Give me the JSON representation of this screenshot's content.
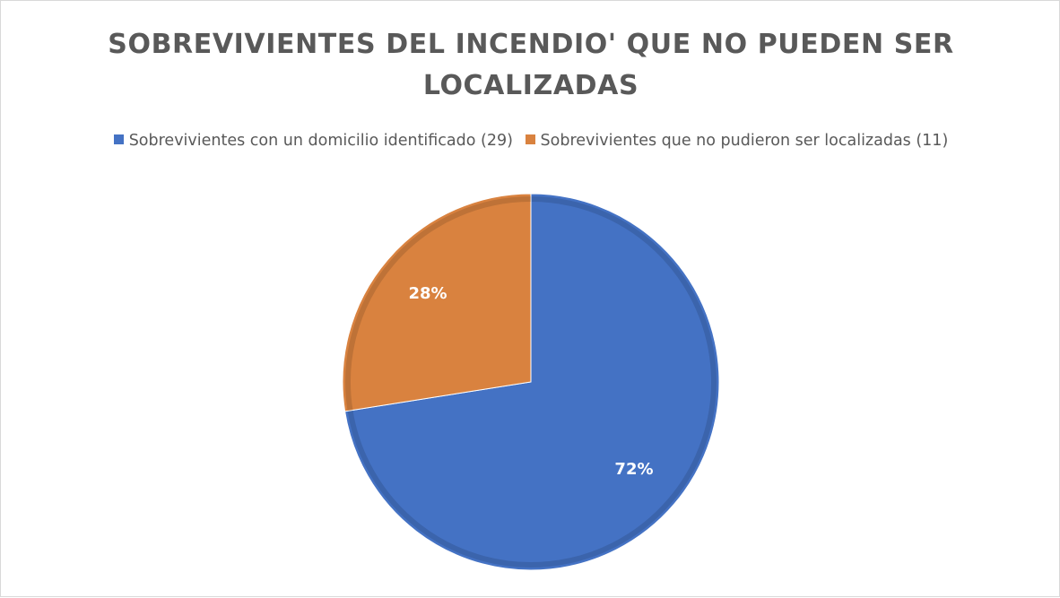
{
  "chart_data": {
    "type": "pie",
    "title": "SOBREVIVIENTES DEL INCENDIO' QUE NO PUEDEN SER LOCALIZADAS",
    "legend_position": "top",
    "slices": [
      {
        "label": "Sobrevivientes con un domicilio identificado (29)",
        "value": 29,
        "percent_label": "72%",
        "color": "#4472C4"
      },
      {
        "label": "Sobrevivientes que no pudieron ser localizadas (11)",
        "value": 11,
        "percent_label": "28%",
        "color": "#D9823F"
      }
    ]
  }
}
